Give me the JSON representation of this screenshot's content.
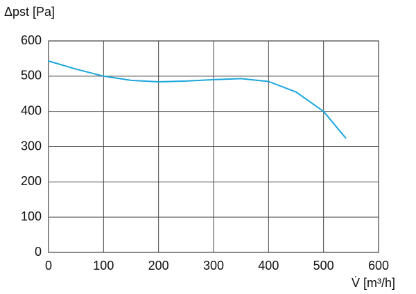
{
  "chart_data": {
    "type": "line",
    "ylabel": "Δpst [Pa]",
    "xlabel": "V̇ [m³/h]",
    "series": [
      {
        "color": "#1ba6dc",
        "x": [
          0,
          50,
          100,
          150,
          200,
          250,
          300,
          350,
          400,
          450,
          500,
          540
        ],
        "values": [
          543,
          520,
          500,
          488,
          484,
          486,
          490,
          493,
          485,
          455,
          400,
          325
        ]
      }
    ],
    "xlim": [
      0,
      600
    ],
    "xticks": [
      0,
      100,
      200,
      300,
      400,
      500,
      600
    ],
    "ylim": [
      0,
      600
    ],
    "yticks": [
      0,
      100,
      200,
      300,
      400,
      500,
      600
    ],
    "grid": true
  }
}
